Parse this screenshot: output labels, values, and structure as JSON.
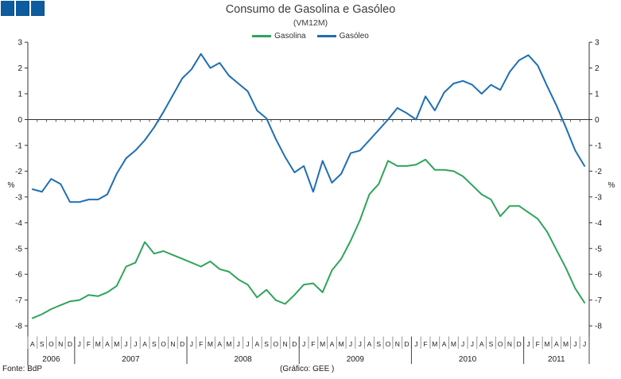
{
  "header": {
    "title": "Consumo de Gasolina e Gasóleo",
    "subtitle": "(VM12M)"
  },
  "logo": {
    "square_count": 3,
    "color": "#0d5c9f"
  },
  "footer": {
    "source": "Fonte: BdP",
    "credit": "(Gráfico: GEE )"
  },
  "axis": {
    "unit_label": "%",
    "y_ticks": [
      3,
      2,
      1,
      0,
      -1,
      -2,
      -3,
      -4,
      -5,
      -6,
      -7,
      -8
    ]
  },
  "chart_data": {
    "type": "line",
    "title": "Consumo de Gasolina e Gasóleo",
    "subtitle": "(VM12M)",
    "ylabel": "%",
    "ylim": [
      -8,
      3
    ],
    "grid": false,
    "legend_position": "top-center",
    "x_months": [
      "A",
      "S",
      "O",
      "N",
      "D",
      "J",
      "F",
      "M",
      "A",
      "M",
      "J",
      "J",
      "A",
      "S",
      "O",
      "N",
      "D",
      "J",
      "F",
      "M",
      "A",
      "M",
      "J",
      "J",
      "A",
      "S",
      "O",
      "N",
      "D",
      "J",
      "F",
      "M",
      "A",
      "M",
      "J",
      "J",
      "A",
      "S",
      "O",
      "N",
      "D",
      "J",
      "F",
      "M",
      "A",
      "M",
      "J",
      "J",
      "A",
      "S",
      "O",
      "N",
      "D",
      "J",
      "F",
      "M",
      "A",
      "M",
      "J",
      "J"
    ],
    "years": [
      {
        "label": "2006",
        "months": 5
      },
      {
        "label": "2007",
        "months": 12
      },
      {
        "label": "2008",
        "months": 12
      },
      {
        "label": "2009",
        "months": 12
      },
      {
        "label": "2010",
        "months": 12
      },
      {
        "label": "2011",
        "months": 7
      }
    ],
    "series": [
      {
        "name": "Gasolina",
        "color": "#2fa45c",
        "values": [
          -7.7,
          -7.55,
          -7.35,
          -7.2,
          -7.05,
          -7.0,
          -6.8,
          -6.85,
          -6.7,
          -6.45,
          -5.7,
          -5.55,
          -4.75,
          -5.2,
          -5.1,
          -5.25,
          -5.4,
          -5.55,
          -5.7,
          -5.5,
          -5.8,
          -5.9,
          -6.2,
          -6.4,
          -6.9,
          -6.6,
          -7.0,
          -7.15,
          -6.8,
          -6.4,
          -6.35,
          -6.7,
          -5.85,
          -5.4,
          -4.7,
          -3.9,
          -2.9,
          -2.5,
          -1.6,
          -1.8,
          -1.8,
          -1.75,
          -1.55,
          -1.95,
          -1.95,
          -2.0,
          -2.2,
          -2.55,
          -2.9,
          -3.1,
          -3.75,
          -3.35,
          -3.35,
          -3.6,
          -3.85,
          -4.35,
          -5.05,
          -5.75,
          -6.55,
          -7.1
        ]
      },
      {
        "name": "Gasóleo",
        "color": "#1f6fb4",
        "values": [
          -2.7,
          -2.8,
          -2.3,
          -2.5,
          -3.2,
          -3.2,
          -3.1,
          -3.1,
          -2.9,
          -2.1,
          -1.5,
          -1.2,
          -0.8,
          -0.3,
          0.3,
          0.95,
          1.6,
          1.95,
          2.55,
          2.0,
          2.2,
          1.7,
          1.4,
          1.1,
          0.35,
          0.05,
          -0.75,
          -1.45,
          -2.05,
          -1.8,
          -2.8,
          -1.6,
          -2.45,
          -2.1,
          -1.3,
          -1.2,
          -0.8,
          -0.4,
          0.0,
          0.45,
          0.25,
          0.0,
          0.9,
          0.35,
          1.05,
          1.4,
          1.5,
          1.35,
          1.0,
          1.35,
          1.15,
          1.85,
          2.3,
          2.5,
          2.1,
          1.3,
          0.55,
          -0.3,
          -1.2,
          -1.8
        ]
      }
    ]
  }
}
